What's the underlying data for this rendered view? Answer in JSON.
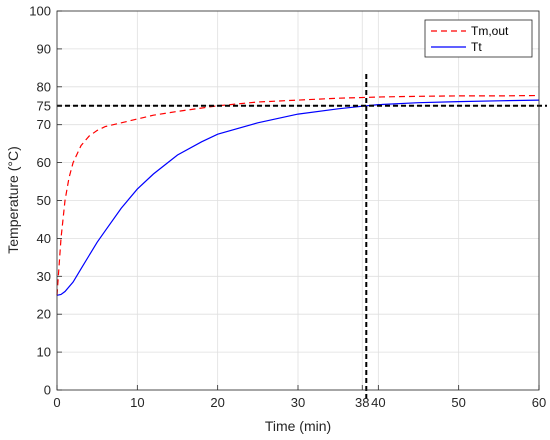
{
  "chart_data": {
    "type": "line",
    "xlabel": "Time (min)",
    "ylabel": "Temperature (°C)",
    "xlim": [
      0,
      60
    ],
    "ylim": [
      0,
      100
    ],
    "xticks": [
      0,
      10,
      20,
      30,
      38,
      40,
      50,
      60
    ],
    "yticks": [
      0,
      10,
      20,
      30,
      40,
      50,
      60,
      70,
      75,
      80,
      90,
      100
    ],
    "grid": true,
    "legend_position": "top-right",
    "series": [
      {
        "name": "Tm,out",
        "color": "#ff0000",
        "style": "dashed",
        "x": [
          0,
          0.5,
          1,
          1.5,
          2,
          3,
          4,
          5,
          6,
          8,
          10,
          12,
          15,
          20,
          25,
          30,
          35,
          38.5,
          40,
          45,
          50,
          55,
          60
        ],
        "y": [
          25,
          40,
          50,
          56,
          60,
          64.5,
          67,
          68.5,
          69.5,
          70.5,
          71.5,
          72.5,
          73.5,
          75,
          76,
          76.5,
          77,
          77.2,
          77.3,
          77.5,
          77.6,
          77.6,
          77.7
        ]
      },
      {
        "name": "Tt",
        "color": "#0000ff",
        "style": "solid",
        "x": [
          0,
          0.5,
          1,
          2,
          3,
          4,
          5,
          6,
          8,
          10,
          12,
          15,
          18,
          20,
          25,
          30,
          35,
          38.5,
          40,
          45,
          50,
          55,
          60
        ],
        "y": [
          25,
          25.2,
          26,
          28.5,
          32,
          35.5,
          39,
          42,
          48,
          53,
          57,
          62,
          65.5,
          67.5,
          70.5,
          72.8,
          74.2,
          75,
          75.3,
          75.8,
          76.1,
          76.3,
          76.5
        ]
      }
    ],
    "reference_lines": [
      {
        "orientation": "horizontal",
        "value": 75,
        "color": "#000000",
        "style": "dashed"
      },
      {
        "orientation": "vertical",
        "value": 38.5,
        "color": "#000000",
        "style": "dashed"
      }
    ]
  }
}
